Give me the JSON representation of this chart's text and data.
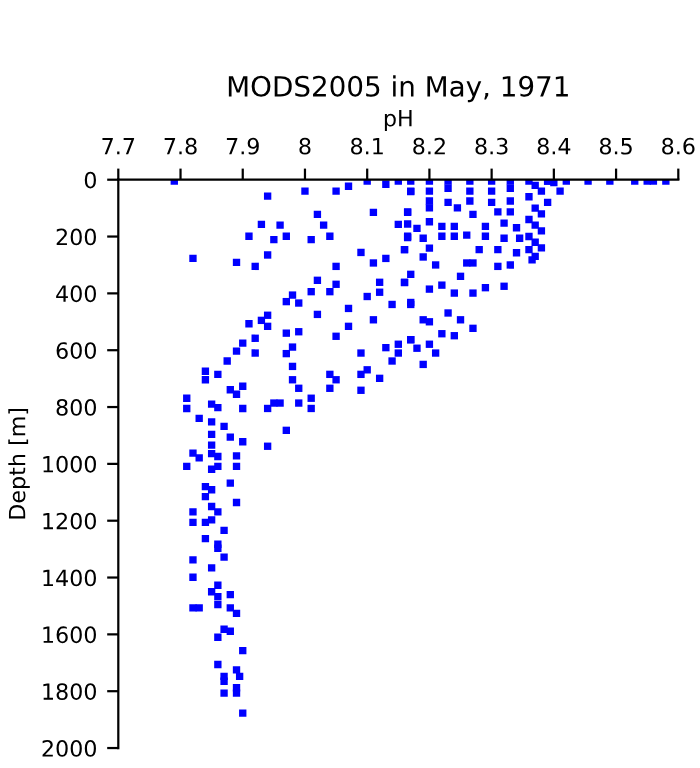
{
  "chart_data": {
    "type": "scatter",
    "title": "MODS2005 in May, 1971",
    "xlabel": "pH",
    "ylabel": "Depth [m]",
    "xlim": [
      7.7,
      8.6
    ],
    "xticks": [
      7.7,
      7.8,
      7.9,
      8,
      8.1,
      8.2,
      8.3,
      8.4,
      8.5,
      8.6
    ],
    "ylim": [
      2000,
      0
    ],
    "yticks": [
      0,
      200,
      400,
      600,
      800,
      1000,
      1200,
      1400,
      1600,
      1800,
      2000
    ],
    "grid": false,
    "legend": false,
    "marker": "square",
    "series": [
      {
        "color": "#0000ff",
        "x": [
          7.79,
          7.94,
          8.0,
          8.05,
          8.07,
          8.13,
          8.17,
          8.02,
          8.11,
          8.165,
          7.93,
          7.96,
          8.03,
          8.15,
          7.91,
          7.95,
          7.97,
          8.01,
          8.04,
          8.165,
          7.82,
          7.89,
          7.92,
          7.94,
          8.05,
          8.09,
          8.11,
          8.13,
          8.16,
          8.02,
          8.05,
          8.12,
          8.16,
          8.01,
          8.04,
          8.1,
          8.12,
          7.98,
          7.97,
          7.99,
          8.14,
          8.17,
          8.07,
          7.94,
          7.93,
          7.91,
          8.02,
          7.94,
          8.07,
          8.11,
          7.97,
          7.99,
          8.05,
          7.92,
          7.9,
          7.98,
          7.89,
          7.92,
          7.97,
          7.875,
          8.13,
          8.15,
          8.17,
          8.15,
          8.14,
          8.09,
          7.98,
          8.04,
          8.05,
          8.09,
          8.1,
          8.12,
          7.84,
          7.86,
          7.84,
          7.88,
          7.9,
          7.98,
          7.99,
          8.04,
          8.09,
          7.89,
          7.81,
          7.81,
          7.85,
          7.86,
          7.9,
          7.95,
          7.96,
          7.94,
          7.99,
          8.01,
          8.01,
          7.83,
          7.85,
          7.87,
          7.85,
          7.88,
          7.97,
          7.85,
          7.9,
          7.94,
          7.82,
          7.85,
          7.86,
          7.89,
          7.83,
          7.81,
          7.86,
          7.89,
          7.85,
          7.88,
          7.84,
          7.85,
          7.84,
          7.89,
          7.85,
          7.82,
          7.86,
          7.82,
          7.84,
          7.85,
          7.87,
          7.84,
          7.86,
          7.86,
          7.87,
          7.82,
          7.85,
          7.82,
          7.86,
          7.85,
          7.86,
          7.88,
          7.82,
          7.83,
          7.86,
          7.88,
          7.89,
          7.87,
          7.88,
          7.86,
          7.9,
          7.86,
          7.89,
          7.87,
          7.895,
          7.87,
          7.89,
          7.87,
          7.89,
          7.9,
          8.17,
          8.2,
          8.23,
          8.265,
          8.3,
          8.33,
          8.36,
          8.39,
          8.42,
          8.455,
          8.49,
          8.53,
          8.55,
          8.56,
          8.58,
          8.1,
          8.15,
          8.17,
          8.2,
          8.23,
          8.265,
          8.3,
          8.33,
          8.2,
          8.23,
          8.265,
          8.3,
          8.33,
          8.165,
          8.2,
          8.245,
          8.27,
          8.31,
          8.33,
          8.165,
          8.18,
          8.2,
          8.22,
          8.24,
          8.26,
          8.29,
          8.32,
          8.34,
          8.165,
          8.19,
          8.22,
          8.24,
          8.29,
          8.32,
          8.345,
          8.16,
          8.2,
          8.28,
          8.31,
          8.34,
          8.36,
          8.19,
          8.21,
          8.26,
          8.27,
          8.31,
          8.33,
          8.365,
          8.17,
          8.16,
          8.25,
          8.2,
          8.22,
          8.24,
          8.27,
          8.29,
          8.32,
          8.17,
          8.23,
          8.25,
          8.19,
          8.2,
          8.22,
          8.24,
          8.27,
          8.17,
          8.18,
          8.2,
          8.21,
          8.19,
          8.37,
          8.38,
          8.36,
          8.39,
          8.37,
          8.38,
          8.36,
          8.37,
          8.38,
          8.36,
          8.37,
          8.38,
          8.37,
          8.4,
          8.41,
          8.39
        ],
        "values": [
          5,
          58,
          40,
          40,
          23,
          16,
          40,
          122,
          115,
          115,
          157,
          160,
          160,
          157,
          199,
          211,
          199,
          211,
          199,
          204,
          277,
          291,
          305,
          265,
          305,
          256,
          293,
          277,
          246,
          354,
          368,
          361,
          361,
          394,
          394,
          411,
          396,
          406,
          429,
          434,
          439,
          432,
          453,
          477,
          495,
          507,
          474,
          516,
          516,
          493,
          540,
          535,
          551,
          558,
          575,
          589,
          603,
          610,
          612,
          638,
          591,
          579,
          563,
          610,
          638,
          610,
          657,
          685,
          704,
          685,
          669,
          699,
          674,
          685,
          704,
          739,
          727,
          704,
          734,
          734,
          741,
          755,
          769,
          805,
          790,
          802,
          805,
          786,
          786,
          805,
          786,
          769,
          805,
          840,
          852,
          868,
          896,
          906,
          882,
          934,
          922,
          938,
          962,
          964,
          974,
          972,
          979,
          1009,
          1009,
          1009,
          1019,
          1068,
          1080,
          1091,
          1115,
          1136,
          1150,
          1169,
          1169,
          1206,
          1206,
          1197,
          1234,
          1263,
          1283,
          1297,
          1328,
          1338,
          1366,
          1399,
          1427,
          1450,
          1467,
          1460,
          1507,
          1507,
          1495,
          1507,
          1526,
          1582,
          1589,
          1610,
          1657,
          1706,
          1725,
          1748,
          1748,
          1765,
          1788,
          1807,
          1807,
          1877,
          5,
          5,
          5,
          5,
          5,
          5,
          5,
          5,
          5,
          5,
          5,
          5,
          5,
          5,
          5,
          5,
          5,
          42,
          40,
          30,
          40,
          40,
          30,
          75,
          80,
          75,
          80,
          75,
          113,
          99,
          99,
          122,
          113,
          113,
          156,
          171,
          148,
          164,
          164,
          195,
          164,
          153,
          169,
          199,
          206,
          199,
          199,
          199,
          206,
          206,
          246,
          241,
          246,
          246,
          257,
          246,
          272,
          300,
          293,
          293,
          305,
          300,
          282,
          333,
          362,
          340,
          385,
          371,
          399,
          399,
          380,
          375,
          439,
          469,
          493,
          493,
          500,
          542,
          549,
          523,
          563,
          593,
          579,
          610,
          650,
          20,
          40,
          60,
          80,
          100,
          120,
          140,
          160,
          180,
          200,
          220,
          240,
          270,
          10,
          40,
          5
        ]
      }
    ]
  }
}
